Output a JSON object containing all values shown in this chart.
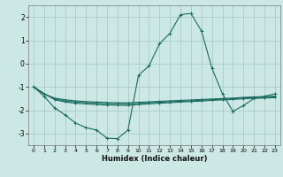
{
  "xlabel": "Humidex (Indice chaleur)",
  "bg_color": "#cce8e4",
  "grid_color": "#aaccca",
  "line_color": "#1a6b60",
  "xlim": [
    -0.5,
    23.5
  ],
  "ylim": [
    -3.5,
    2.5
  ],
  "yticks": [
    -3,
    -2,
    -1,
    0,
    1,
    2
  ],
  "xticks": [
    0,
    1,
    2,
    3,
    4,
    5,
    6,
    7,
    8,
    9,
    10,
    11,
    12,
    13,
    14,
    15,
    16,
    17,
    18,
    19,
    20,
    21,
    22,
    23
  ],
  "lines": [
    {
      "x": [
        0,
        1,
        2,
        3,
        4,
        5,
        6,
        7,
        8,
        9,
        10,
        11,
        12,
        13,
        14,
        15,
        16,
        17,
        18,
        19,
        20,
        21,
        22,
        23
      ],
      "y": [
        -1.0,
        -1.4,
        -1.9,
        -2.2,
        -2.55,
        -2.75,
        -2.85,
        -3.2,
        -3.22,
        -2.85,
        -0.5,
        -0.1,
        0.85,
        1.3,
        2.1,
        2.15,
        1.4,
        -0.2,
        -1.3,
        -2.05,
        -1.8,
        -1.5,
        -1.4,
        -1.3
      ]
    },
    {
      "x": [
        0,
        1,
        2,
        3,
        4,
        5,
        6,
        7,
        8,
        9,
        10,
        11,
        12,
        13,
        14,
        15,
        16,
        17,
        18,
        19,
        20,
        21,
        22,
        23
      ],
      "y": [
        -1.0,
        -1.3,
        -1.48,
        -1.55,
        -1.6,
        -1.63,
        -1.65,
        -1.67,
        -1.68,
        -1.68,
        -1.66,
        -1.64,
        -1.62,
        -1.6,
        -1.58,
        -1.56,
        -1.54,
        -1.52,
        -1.5,
        -1.48,
        -1.45,
        -1.43,
        -1.42,
        -1.4
      ]
    },
    {
      "x": [
        0,
        1,
        2,
        3,
        4,
        5,
        6,
        7,
        8,
        9,
        10,
        11,
        12,
        13,
        14,
        15,
        16,
        17,
        18,
        19,
        20,
        21,
        22,
        23
      ],
      "y": [
        -1.0,
        -1.3,
        -1.52,
        -1.6,
        -1.65,
        -1.68,
        -1.7,
        -1.72,
        -1.73,
        -1.74,
        -1.71,
        -1.68,
        -1.66,
        -1.64,
        -1.62,
        -1.6,
        -1.57,
        -1.55,
        -1.53,
        -1.51,
        -1.48,
        -1.46,
        -1.45,
        -1.43
      ]
    },
    {
      "x": [
        0,
        1,
        2,
        3,
        4,
        5,
        6,
        7,
        8,
        9,
        10,
        11,
        12,
        13,
        14,
        15,
        16,
        17,
        18,
        19,
        20,
        21,
        22,
        23
      ],
      "y": [
        -1.0,
        -1.28,
        -1.55,
        -1.65,
        -1.7,
        -1.73,
        -1.76,
        -1.78,
        -1.79,
        -1.8,
        -1.76,
        -1.73,
        -1.7,
        -1.68,
        -1.65,
        -1.63,
        -1.61,
        -1.58,
        -1.56,
        -1.54,
        -1.51,
        -1.49,
        -1.48,
        -1.46
      ]
    }
  ]
}
